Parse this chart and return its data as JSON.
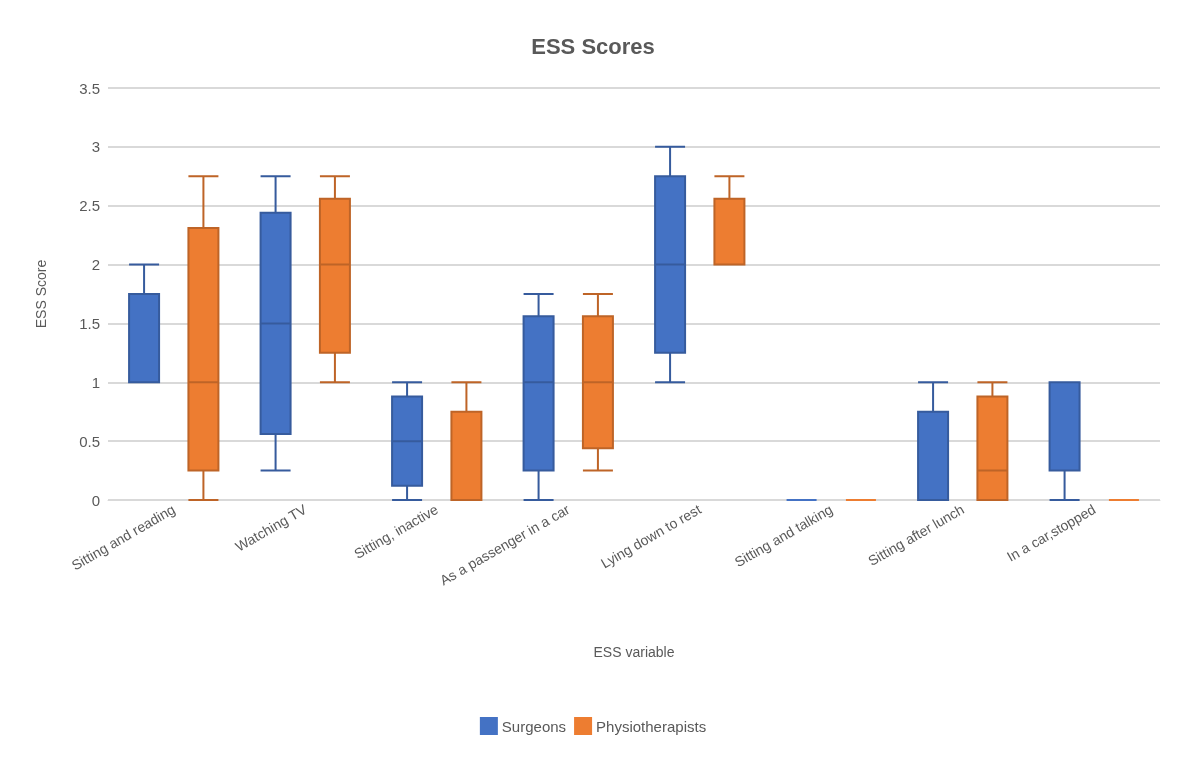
{
  "chart_data": {
    "type": "box",
    "title": "ESS Scores",
    "xlabel": "ESS variable",
    "ylabel": "ESS Score",
    "categories": [
      "Sitting and reading",
      "Watching TV",
      "Sitting, inactive",
      "As a passenger in a car",
      "Lying down to rest",
      "Sitting and talking",
      "Sitting after lunch",
      "In a car,stopped"
    ],
    "ylim": [
      0,
      3.5
    ],
    "yticks": [
      0,
      0.5,
      1,
      1.5,
      2,
      2.5,
      3,
      3.5
    ],
    "grid": "y",
    "legend": "bottom",
    "series": [
      {
        "name": "Surgeons",
        "color": "#4472c4",
        "boxes": [
          {
            "low": 1,
            "q1": 1,
            "median": 1,
            "q3": 1.75,
            "high": 2
          },
          {
            "low": 0.25,
            "q1": 0.56,
            "median": 1.5,
            "q3": 2.44,
            "high": 2.75
          },
          {
            "low": 0,
            "q1": 0.12,
            "median": 0.5,
            "q3": 0.88,
            "high": 1
          },
          {
            "low": 0,
            "q1": 0.25,
            "median": 1,
            "q3": 1.56,
            "high": 1.75
          },
          {
            "low": 1,
            "q1": 1.25,
            "median": 2,
            "q3": 2.75,
            "high": 3
          },
          {
            "low": 0,
            "q1": 0,
            "median": 0,
            "q3": 0,
            "high": 0
          },
          {
            "low": 0,
            "q1": 0,
            "median": 0,
            "q3": 0.75,
            "high": 1
          },
          {
            "low": 0,
            "q1": 0.25,
            "median": 1,
            "q3": 1,
            "high": 1
          }
        ]
      },
      {
        "name": "Physiotherapists",
        "color": "#ed7d31",
        "boxes": [
          {
            "low": 0,
            "q1": 0.25,
            "median": 1,
            "q3": 2.31,
            "high": 2.75
          },
          {
            "low": 1,
            "q1": 1.25,
            "median": 2,
            "q3": 2.56,
            "high": 2.75
          },
          {
            "low": 0,
            "q1": 0,
            "median": 0,
            "q3": 0.75,
            "high": 1
          },
          {
            "low": 0.25,
            "q1": 0.44,
            "median": 1,
            "q3": 1.56,
            "high": 1.75
          },
          {
            "low": 2,
            "q1": 2,
            "median": 2,
            "q3": 2.56,
            "high": 2.75
          },
          {
            "low": 0,
            "q1": 0,
            "median": 0,
            "q3": 0,
            "high": 0
          },
          {
            "low": 0,
            "q1": 0,
            "median": 0.25,
            "q3": 0.88,
            "high": 1
          },
          {
            "low": 0,
            "q1": 0,
            "median": 0,
            "q3": 0,
            "high": 0
          }
        ]
      }
    ]
  }
}
